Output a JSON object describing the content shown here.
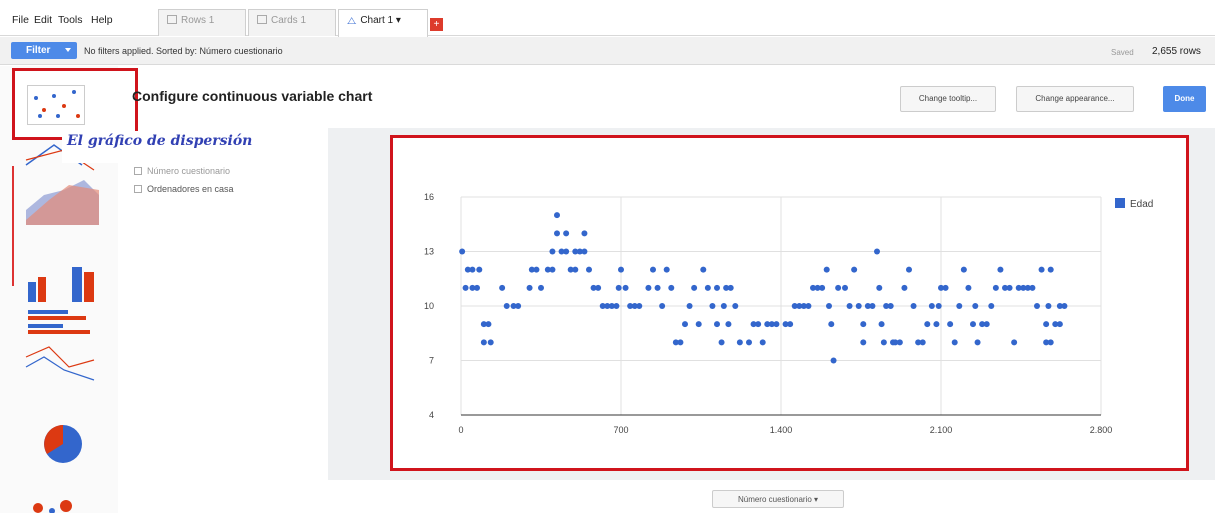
{
  "menu": {
    "file": "File",
    "edit": "Edit",
    "tools": "Tools",
    "help": "Help"
  },
  "tabs": [
    {
      "label": "Rows 1",
      "icon": "rows-icon"
    },
    {
      "label": "Cards 1",
      "icon": "cards-icon"
    },
    {
      "label": "Chart 1 ▾",
      "icon": "chart-icon",
      "active": true
    }
  ],
  "add_tab_label": "+",
  "filterbar": {
    "filter_label": "Filter",
    "status": "No filters applied. Sorted by: Número cuestionario",
    "saved": "Saved",
    "rows": "2,655 rows"
  },
  "config": {
    "title": "Configure continuous variable chart",
    "change_tooltip": "Change tooltip...",
    "change_appearance": "Change appearance...",
    "done": "Done"
  },
  "annotation": "El gráfico de dispersión",
  "variables": [
    {
      "label": "Número cuestionario"
    },
    {
      "label": "Ordenadores en casa"
    }
  ],
  "bottom_select": "Número cuestionario ▾",
  "colors": {
    "accent": "#4d8ae8",
    "highlight": "#d0141c",
    "series": "#3366cc"
  },
  "chart_data": {
    "type": "scatter",
    "xlabel": "",
    "ylabel": "",
    "xlim": [
      0,
      2800
    ],
    "ylim": [
      4,
      16
    ],
    "xticks": [
      "0",
      "700",
      "1.400",
      "2.100",
      "2.800"
    ],
    "yticks": [
      "4",
      "7",
      "10",
      "13",
      "16"
    ],
    "grid": true,
    "legend_position": "right",
    "series": [
      {
        "name": "Edad",
        "points": [
          [
            5,
            13
          ],
          [
            30,
            12
          ],
          [
            50,
            12
          ],
          [
            20,
            11
          ],
          [
            50,
            11
          ],
          [
            70,
            11
          ],
          [
            100,
            9
          ],
          [
            120,
            9
          ],
          [
            100,
            8
          ],
          [
            130,
            8
          ],
          [
            80,
            12
          ],
          [
            180,
            11
          ],
          [
            200,
            10
          ],
          [
            230,
            10
          ],
          [
            250,
            10
          ],
          [
            300,
            11
          ],
          [
            310,
            12
          ],
          [
            330,
            12
          ],
          [
            350,
            11
          ],
          [
            380,
            12
          ],
          [
            400,
            12
          ],
          [
            400,
            13
          ],
          [
            420,
            14
          ],
          [
            420,
            15
          ],
          [
            440,
            13
          ],
          [
            460,
            13
          ],
          [
            460,
            14
          ],
          [
            480,
            12
          ],
          [
            500,
            12
          ],
          [
            500,
            13
          ],
          [
            520,
            13
          ],
          [
            540,
            13
          ],
          [
            540,
            14
          ],
          [
            560,
            12
          ],
          [
            580,
            11
          ],
          [
            600,
            11
          ],
          [
            620,
            10
          ],
          [
            640,
            10
          ],
          [
            660,
            10
          ],
          [
            680,
            10
          ],
          [
            690,
            11
          ],
          [
            700,
            12
          ],
          [
            720,
            11
          ],
          [
            740,
            10
          ],
          [
            760,
            10
          ],
          [
            780,
            10
          ],
          [
            820,
            11
          ],
          [
            840,
            12
          ],
          [
            860,
            11
          ],
          [
            880,
            10
          ],
          [
            900,
            12
          ],
          [
            920,
            11
          ],
          [
            940,
            8
          ],
          [
            960,
            8
          ],
          [
            980,
            9
          ],
          [
            1000,
            10
          ],
          [
            1020,
            11
          ],
          [
            1040,
            9
          ],
          [
            1060,
            12
          ],
          [
            1080,
            11
          ],
          [
            1100,
            10
          ],
          [
            1120,
            11
          ],
          [
            1120,
            9
          ],
          [
            1140,
            8
          ],
          [
            1150,
            10
          ],
          [
            1160,
            11
          ],
          [
            1170,
            9
          ],
          [
            1180,
            11
          ],
          [
            1200,
            10
          ],
          [
            1220,
            8
          ],
          [
            1260,
            8
          ],
          [
            1280,
            9
          ],
          [
            1300,
            9
          ],
          [
            1320,
            8
          ],
          [
            1340,
            9
          ],
          [
            1360,
            9
          ],
          [
            1380,
            9
          ],
          [
            1420,
            9
          ],
          [
            1440,
            9
          ],
          [
            1460,
            10
          ],
          [
            1480,
            10
          ],
          [
            1500,
            10
          ],
          [
            1520,
            10
          ],
          [
            1540,
            11
          ],
          [
            1560,
            11
          ],
          [
            1580,
            11
          ],
          [
            1600,
            12
          ],
          [
            1610,
            10
          ],
          [
            1620,
            9
          ],
          [
            1630,
            7
          ],
          [
            1650,
            11
          ],
          [
            1680,
            11
          ],
          [
            1700,
            10
          ],
          [
            1720,
            12
          ],
          [
            1740,
            10
          ],
          [
            1760,
            9
          ],
          [
            1760,
            8
          ],
          [
            1780,
            10
          ],
          [
            1800,
            10
          ],
          [
            1820,
            13
          ],
          [
            1830,
            11
          ],
          [
            1840,
            9
          ],
          [
            1850,
            8
          ],
          [
            1860,
            10
          ],
          [
            1880,
            10
          ],
          [
            1890,
            8
          ],
          [
            1900,
            8
          ],
          [
            1920,
            8
          ],
          [
            1940,
            11
          ],
          [
            1960,
            12
          ],
          [
            1980,
            10
          ],
          [
            2000,
            8
          ],
          [
            2020,
            8
          ],
          [
            2040,
            9
          ],
          [
            2060,
            10
          ],
          [
            2080,
            9
          ],
          [
            2090,
            10
          ],
          [
            2100,
            11
          ],
          [
            2120,
            11
          ],
          [
            2140,
            9
          ],
          [
            2160,
            8
          ],
          [
            2180,
            10
          ],
          [
            2200,
            12
          ],
          [
            2220,
            11
          ],
          [
            2240,
            9
          ],
          [
            2250,
            10
          ],
          [
            2260,
            8
          ],
          [
            2280,
            9
          ],
          [
            2300,
            9
          ],
          [
            2320,
            10
          ],
          [
            2340,
            11
          ],
          [
            2360,
            12
          ],
          [
            2380,
            11
          ],
          [
            2400,
            11
          ],
          [
            2420,
            8
          ],
          [
            2440,
            11
          ],
          [
            2460,
            11
          ],
          [
            2480,
            11
          ],
          [
            2500,
            11
          ],
          [
            2520,
            10
          ],
          [
            2540,
            12
          ],
          [
            2560,
            9
          ],
          [
            2560,
            8
          ],
          [
            2570,
            10
          ],
          [
            2580,
            12
          ],
          [
            2600,
            9
          ],
          [
            2620,
            10
          ],
          [
            2640,
            10
          ],
          [
            2580,
            8
          ],
          [
            2620,
            9
          ]
        ]
      }
    ]
  }
}
